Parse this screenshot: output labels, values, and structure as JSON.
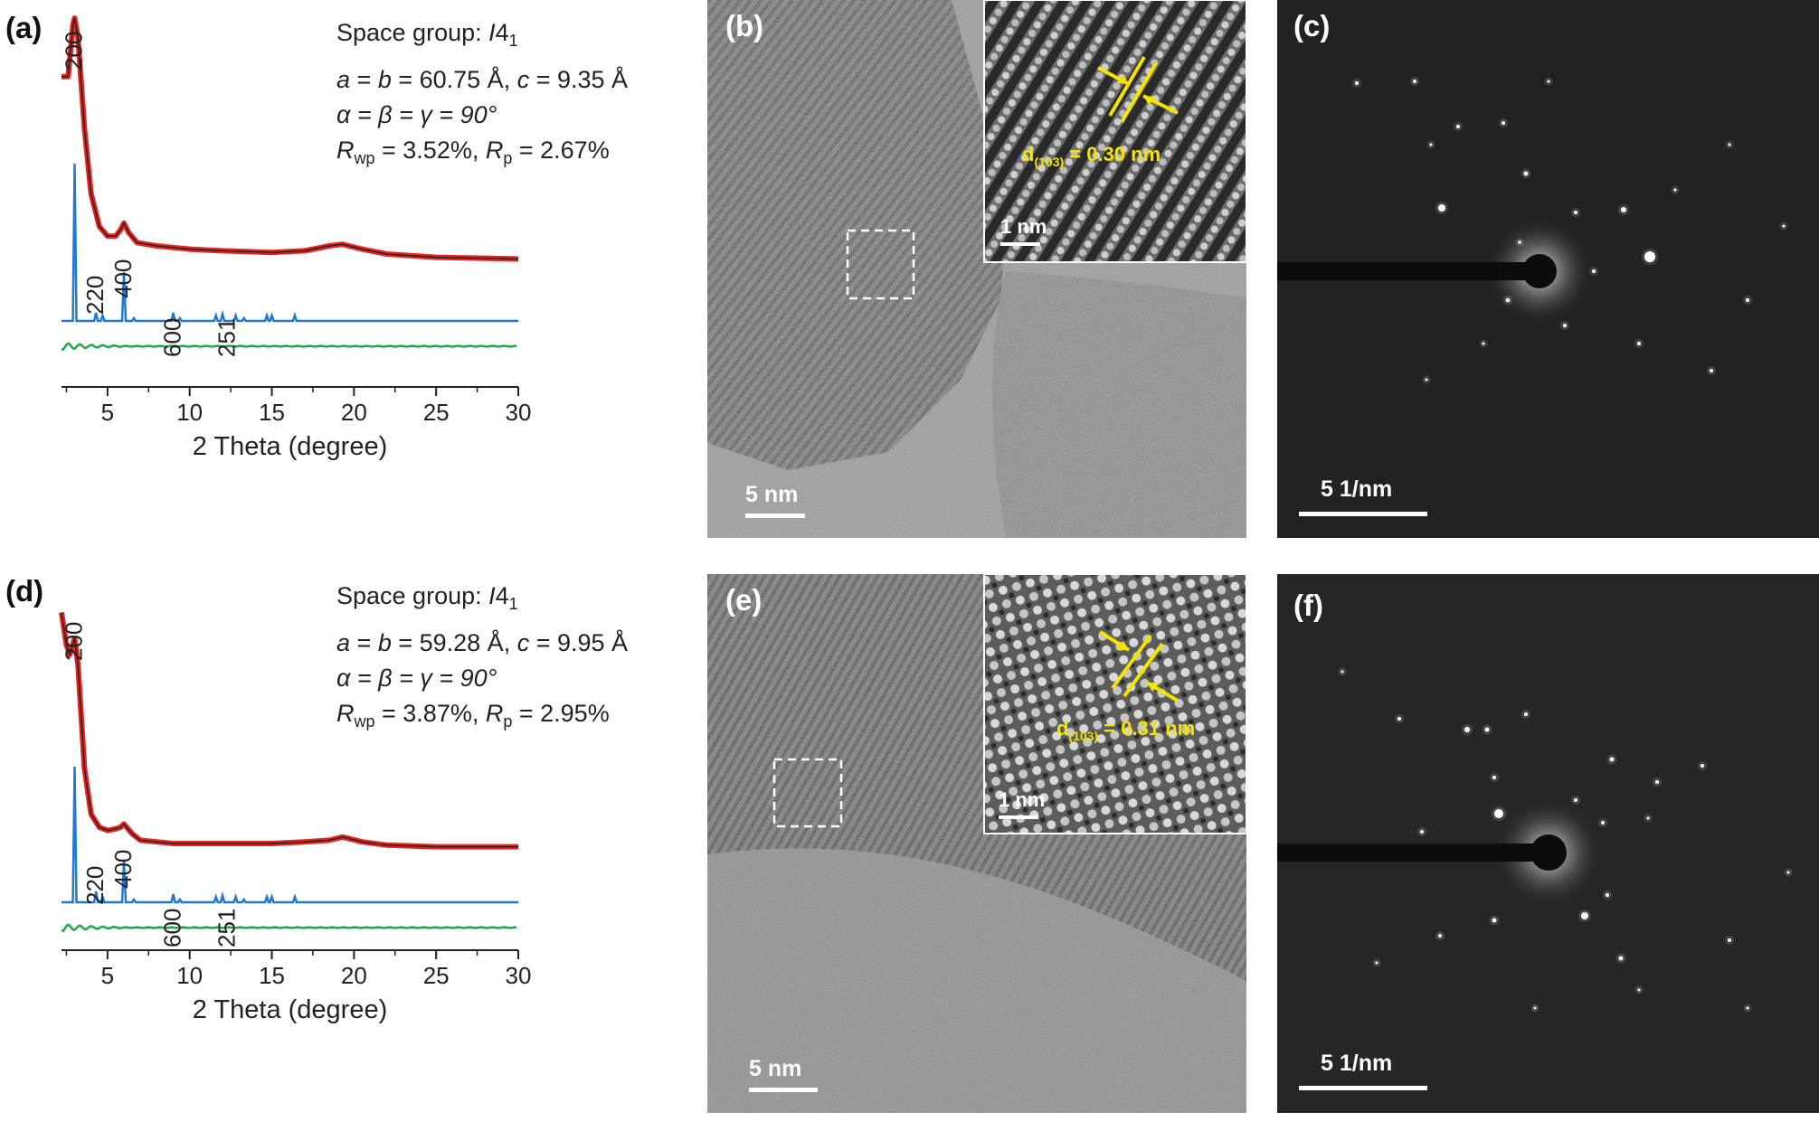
{
  "figure": {
    "panels": [
      {
        "label": "(a)",
        "params": {
          "space_group": {
            "prefix": "Space group: ",
            "symbol": "I",
            "number": "4",
            "sub": "1"
          },
          "line2": {
            "a": "a",
            "eq1": " = ",
            "b": "b",
            "eq2": " = 60.75 Å, ",
            "c": "c",
            "eq3": " = 9.35 Å"
          },
          "line3": "α = β = γ = 90°",
          "line4": {
            "r": "R",
            "wp": "wp",
            "v1": " = 3.52%, ",
            "r2": "R",
            "p": "p",
            "v2": " = 2.67%"
          }
        },
        "peaks": [
          "200",
          "220",
          "400",
          "600",
          "251"
        ]
      },
      {
        "label": "(d)",
        "params": {
          "space_group": {
            "prefix": "Space group: ",
            "symbol": "I",
            "number": "4",
            "sub": "1"
          },
          "line2": {
            "a": "a",
            "eq1": " = ",
            "b": "b",
            "eq2": " = 59.28 Å, ",
            "c": "c",
            "eq3": " = 9.95 Å"
          },
          "line3": "α = β = γ = 90°",
          "line4": {
            "r": "R",
            "wp": "wp",
            "v1": " = 3.87%, ",
            "r2": "R",
            "p": "p",
            "v2": " = 2.95%"
          }
        },
        "peaks": [
          "200",
          "220",
          "400",
          "600",
          "251"
        ]
      }
    ],
    "tem": [
      {
        "label": "(b)",
        "scale": "5 nm",
        "inset_scale": "1 nm",
        "d_text": {
          "d": "d",
          "sub": "(103)",
          "val": " = 0.30 nm"
        }
      },
      {
        "label": "(e)",
        "scale": "5 nm",
        "inset_scale": "1 nm",
        "d_text": {
          "d": "d",
          "sub": "(103)",
          "val": " = 0.31 nm"
        }
      }
    ],
    "saed": [
      {
        "label": "(c)",
        "scale": "5 1/nm"
      },
      {
        "label": "(f)",
        "scale": "5 1/nm"
      }
    ],
    "colors": {
      "observed": "#222222",
      "calculated": "#e8231f",
      "simulated": "#1f78d6",
      "difference": "#1fa84a",
      "tem_annotation": "#f2e600"
    }
  },
  "chart_data": [
    {
      "type": "line",
      "panel": "(a)",
      "xlabel": "2 Theta (degree)",
      "ylabel": "",
      "xlim": [
        2.2,
        30
      ],
      "xticks": [
        5,
        10,
        15,
        20,
        25,
        30
      ],
      "peak_labels": [
        {
          "text": "200",
          "x": 3.0
        },
        {
          "text": "220",
          "x": 4.3
        },
        {
          "text": "400",
          "x": 6.0
        },
        {
          "text": "600",
          "x": 9.0
        },
        {
          "text": "251",
          "x": 12.3
        }
      ],
      "series": [
        {
          "key": "observed",
          "x": [
            2.2,
            2.6,
            2.9,
            3.0,
            3.2,
            3.6,
            4.0,
            4.5,
            5.0,
            5.5,
            5.8,
            6.0,
            6.3,
            6.8,
            8,
            9,
            10,
            12,
            15,
            17,
            18.5,
            19.3,
            20.5,
            22,
            25,
            30
          ],
          "y": [
            0.82,
            0.82,
            0.98,
            1.0,
            0.94,
            0.66,
            0.46,
            0.36,
            0.33,
            0.33,
            0.35,
            0.37,
            0.34,
            0.31,
            0.3,
            0.295,
            0.29,
            0.285,
            0.28,
            0.285,
            0.3,
            0.305,
            0.29,
            0.275,
            0.265,
            0.26
          ]
        },
        {
          "key": "simulated_peaks",
          "x": [
            3.0,
            4.3,
            4.7,
            6.0,
            6.6,
            9.0,
            9.4,
            11.6,
            12.0,
            12.8,
            13.3,
            14.7,
            15.0,
            16.4
          ],
          "h": [
            0.58,
            0.03,
            0.02,
            0.18,
            0.01,
            0.03,
            0.01,
            0.02,
            0.025,
            0.02,
            0.01,
            0.02,
            0.02,
            0.02
          ]
        }
      ]
    },
    {
      "type": "line",
      "panel": "(d)",
      "xlabel": "2 Theta (degree)",
      "ylabel": "",
      "xlim": [
        2.2,
        30
      ],
      "xticks": [
        5,
        10,
        15,
        20,
        25,
        30
      ],
      "peak_labels": [
        {
          "text": "200",
          "x": 3.0
        },
        {
          "text": "220",
          "x": 4.3
        },
        {
          "text": "400",
          "x": 6.0
        },
        {
          "text": "600",
          "x": 9.0
        },
        {
          "text": "251",
          "x": 12.3
        }
      ],
      "series": [
        {
          "key": "observed",
          "x": [
            2.2,
            2.5,
            2.7,
            3.0,
            3.2,
            3.6,
            4.0,
            4.5,
            5.0,
            5.5,
            5.8,
            6.0,
            6.5,
            7.0,
            8,
            9,
            10,
            12,
            15,
            17,
            18.5,
            19.3,
            20.5,
            22,
            25,
            30
          ],
          "y": [
            0.96,
            0.86,
            0.83,
            0.88,
            0.8,
            0.48,
            0.34,
            0.3,
            0.29,
            0.295,
            0.3,
            0.31,
            0.28,
            0.26,
            0.255,
            0.25,
            0.25,
            0.25,
            0.25,
            0.255,
            0.26,
            0.27,
            0.255,
            0.245,
            0.24,
            0.24
          ]
        },
        {
          "key": "simulated_peaks",
          "x": [
            3.0,
            4.3,
            4.7,
            6.0,
            6.6,
            9.0,
            9.4,
            11.6,
            12.0,
            12.8,
            13.3,
            14.7,
            15.0,
            16.4
          ],
          "h": [
            0.5,
            0.04,
            0.02,
            0.15,
            0.01,
            0.03,
            0.01,
            0.02,
            0.025,
            0.02,
            0.01,
            0.02,
            0.02,
            0.02
          ]
        }
      ]
    }
  ]
}
